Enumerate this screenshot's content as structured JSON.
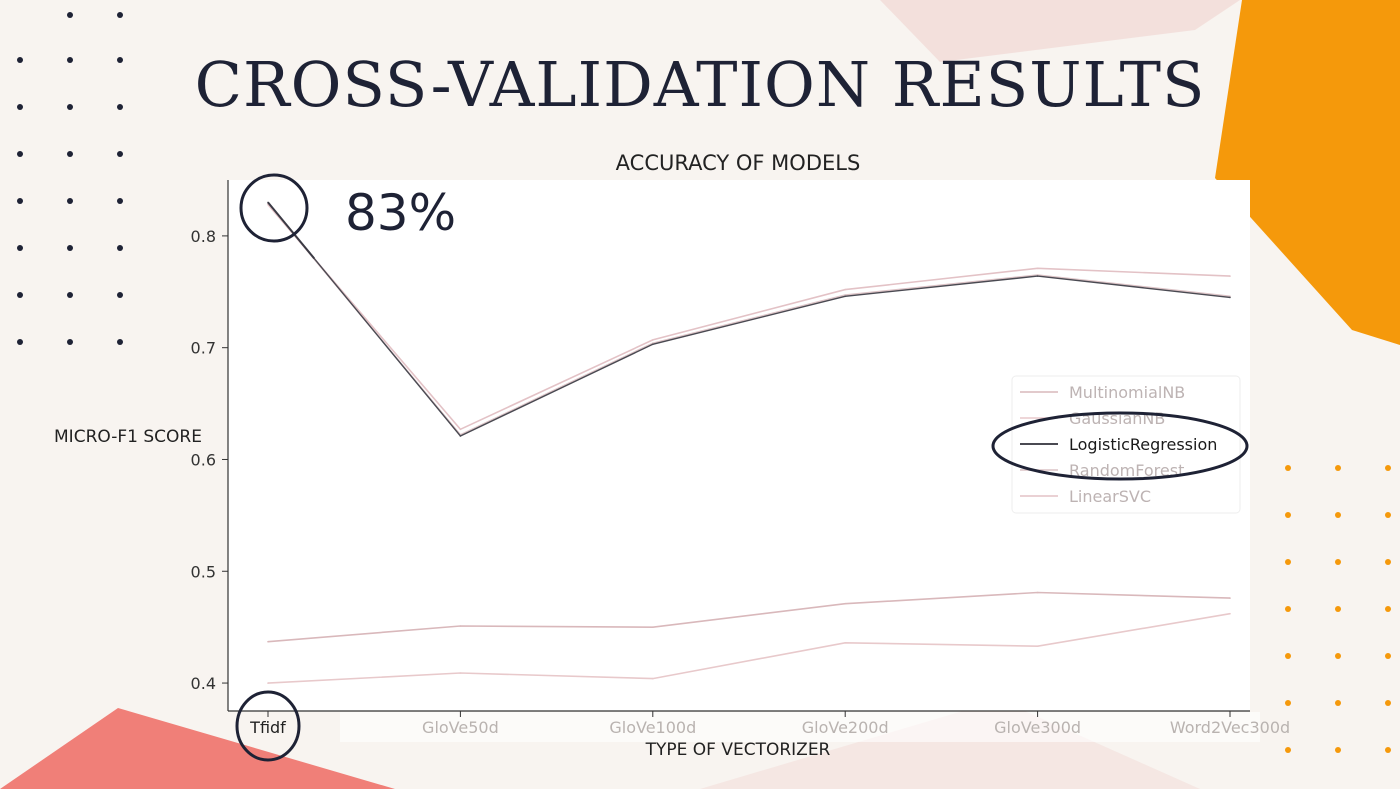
{
  "slide": {
    "title": "CROSS-VALIDATION RESULTS",
    "accent_colors": {
      "orange": "#f5990b",
      "coral": "#f07f78",
      "navy": "#1e2235",
      "pink": "#f2d9d6"
    }
  },
  "callout": {
    "text": "83%",
    "highlight_series": "LogisticRegression",
    "highlight_category": "Tfidf"
  },
  "chart_data": {
    "type": "line",
    "title": "ACCURACY OF MODELS",
    "xlabel": "TYPE OF VECTORIZER",
    "ylabel": "MICRO-F1 SCORE",
    "categories": [
      "Tfidf",
      "GloVe50d",
      "GloVe100d",
      "GloVe200d",
      "GloVe300d",
      "Word2Vec300d"
    ],
    "ylim": [
      0.375,
      0.85
    ],
    "yticks": [
      "0.4",
      "0.5",
      "0.6",
      "0.7",
      "0.8"
    ],
    "grid": false,
    "legend_position": "center-right",
    "series": [
      {
        "name": "MultinomialNB",
        "values": [
          0.437,
          0.451,
          0.45,
          0.471,
          0.481,
          0.476
        ],
        "color": "#d9b8bb",
        "highlight": false
      },
      {
        "name": "GaussianNB",
        "values": [
          0.4,
          0.409,
          0.404,
          0.436,
          0.433,
          0.462
        ],
        "color": "#e8c9cb",
        "highlight": false
      },
      {
        "name": "LogisticRegression",
        "values": [
          0.83,
          0.621,
          0.703,
          0.746,
          0.764,
          0.745
        ],
        "color": "#4a4a52",
        "highlight": true
      },
      {
        "name": "RandomForest",
        "values": [
          0.829,
          0.622,
          0.704,
          0.747,
          0.765,
          0.746
        ],
        "color": "#dcc3c6",
        "highlight": false
      },
      {
        "name": "LinearSVC",
        "values": [
          0.828,
          0.627,
          0.707,
          0.752,
          0.771,
          0.764
        ],
        "color": "#e3c2c6",
        "highlight": false
      }
    ]
  }
}
